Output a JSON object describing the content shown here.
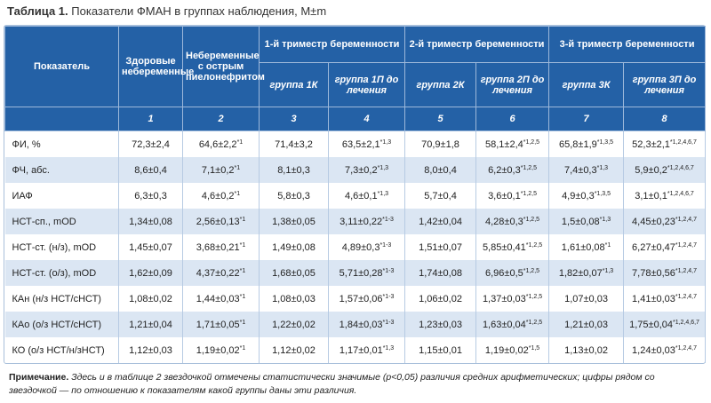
{
  "title": {
    "label": "Таблица 1.",
    "text": "Показатели ФМАН в группах наблюдения, M±m"
  },
  "table": {
    "header": {
      "indicator": "Показатель",
      "healthy": "Здоровые небеременные",
      "pyelo": "Небеременные с острым пиелонефритом",
      "trimesters": [
        "1-й триместр беременности",
        "2-й триместр беременности",
        "3-й триместр беременности"
      ],
      "groups": [
        "группа 1К",
        "группа 1П до лечения",
        "группа 2К",
        "группа 2П до лечения",
        "группа 3К",
        "группа 3П до лечения"
      ],
      "numbers": [
        "1",
        "2",
        "3",
        "4",
        "5",
        "6",
        "7",
        "8"
      ]
    },
    "rows": [
      {
        "label": "ФИ, %",
        "cells": [
          {
            "value": "72,3±2,4"
          },
          {
            "value": "64,6±2,2",
            "sup": "*1"
          },
          {
            "value": "71,4±3,2"
          },
          {
            "value": "63,5±2,1",
            "sup": "*1,3"
          },
          {
            "value": "70,9±1,8"
          },
          {
            "value": "58,1±2,4",
            "sup": "*1,2,5"
          },
          {
            "value": "65,8±1,9",
            "sup": "*1,3,5"
          },
          {
            "value": "52,3±2,1",
            "sup": "*1,2,4,6,7"
          }
        ]
      },
      {
        "label": "ФЧ, абс.",
        "cells": [
          {
            "value": "8,6±0,4"
          },
          {
            "value": "7,1±0,2",
            "sup": "*1"
          },
          {
            "value": "8,1±0,3"
          },
          {
            "value": "7,3±0,2",
            "sup": "*1,3"
          },
          {
            "value": "8,0±0,4"
          },
          {
            "value": "6,2±0,3",
            "sup": "*1,2,5"
          },
          {
            "value": "7,4±0,3",
            "sup": "*1,3"
          },
          {
            "value": "5,9±0,2",
            "sup": "*1,2,4,6,7"
          }
        ]
      },
      {
        "label": "ИАФ",
        "cells": [
          {
            "value": "6,3±0,3"
          },
          {
            "value": "4,6±0,2",
            "sup": "*1"
          },
          {
            "value": "5,8±0,3"
          },
          {
            "value": "4,6±0,1",
            "sup": "*1,3"
          },
          {
            "value": "5,7±0,4"
          },
          {
            "value": "3,6±0,1",
            "sup": "*1,2,5"
          },
          {
            "value": "4,9±0,3",
            "sup": "*1,3,5"
          },
          {
            "value": "3,1±0,1",
            "sup": "*1,2,4,6,7"
          }
        ]
      },
      {
        "label": "НСТ-сп., mOD",
        "cells": [
          {
            "value": "1,34±0,08"
          },
          {
            "value": "2,56±0,13",
            "sup": "*1"
          },
          {
            "value": "1,38±0,05"
          },
          {
            "value": "3,11±0,22",
            "sup": "*1-3"
          },
          {
            "value": "1,42±0,04"
          },
          {
            "value": "4,28±0,3",
            "sup": "*1,2,5"
          },
          {
            "value": "1,5±0,08",
            "sup": "*1,3"
          },
          {
            "value": "4,45±0,23",
            "sup": "*1,2,4,7"
          }
        ]
      },
      {
        "label": "НСТ-ст. (н/з), mOD",
        "cells": [
          {
            "value": "1,45±0,07"
          },
          {
            "value": "3,68±0,21",
            "sup": "*1"
          },
          {
            "value": "1,49±0,08"
          },
          {
            "value": "4,89±0,3",
            "sup": "*1-3"
          },
          {
            "value": "1,51±0,07"
          },
          {
            "value": "5,85±0,41",
            "sup": "*1,2,5"
          },
          {
            "value": "1,61±0,08",
            "sup": "*1"
          },
          {
            "value": "6,27±0,47",
            "sup": "*1,2,4,7"
          }
        ]
      },
      {
        "label": "НСТ-ст. (о/з), mOD",
        "cells": [
          {
            "value": "1,62±0,09"
          },
          {
            "value": "4,37±0,22",
            "sup": "*1"
          },
          {
            "value": "1,68±0,05"
          },
          {
            "value": "5,71±0,28",
            "sup": "*1-3"
          },
          {
            "value": "1,74±0,08"
          },
          {
            "value": "6,96±0,5",
            "sup": "*1,2,5"
          },
          {
            "value": "1,82±0,07",
            "sup": "*1,3"
          },
          {
            "value": "7,78±0,56",
            "sup": "*1,2,4,7"
          }
        ]
      },
      {
        "label": "КАн (н/з НСТ/сНСТ)",
        "cells": [
          {
            "value": "1,08±0,02"
          },
          {
            "value": "1,44±0,03",
            "sup": "*1"
          },
          {
            "value": "1,08±0,03"
          },
          {
            "value": "1,57±0,06",
            "sup": "*1-3"
          },
          {
            "value": "1,06±0,02"
          },
          {
            "value": "1,37±0,03",
            "sup": "*1,2,5"
          },
          {
            "value": "1,07±0,03"
          },
          {
            "value": "1,41±0,03",
            "sup": "*1,2,4,7"
          }
        ]
      },
      {
        "label": "КАо (о/з НСТ/сНСТ)",
        "cells": [
          {
            "value": "1,21±0,04"
          },
          {
            "value": "1,71±0,05",
            "sup": "*1"
          },
          {
            "value": "1,22±0,02"
          },
          {
            "value": "1,84±0,03",
            "sup": "*1-3"
          },
          {
            "value": "1,23±0,03"
          },
          {
            "value": "1,63±0,04",
            "sup": "*1,2,5"
          },
          {
            "value": "1,21±0,03"
          },
          {
            "value": "1,75±0,04",
            "sup": "*1,2,4,6,7"
          }
        ]
      },
      {
        "label": "КО (о/з НСТ/н/зНСТ)",
        "cells": [
          {
            "value": "1,12±0,03"
          },
          {
            "value": "1,19±0,02",
            "sup": "*1"
          },
          {
            "value": "1,12±0,02"
          },
          {
            "value": "1,17±0,01",
            "sup": "*1,3"
          },
          {
            "value": "1,15±0,01"
          },
          {
            "value": "1,19±0,02",
            "sup": "*1,5"
          },
          {
            "value": "1,13±0,02"
          },
          {
            "value": "1,24±0,03",
            "sup": "*1,2,4,7"
          }
        ]
      }
    ]
  },
  "note": {
    "label": "Примечание.",
    "text": "Здесь и в таблице 2 звездочкой отмечены статистически значимые (p<0,05) различия средних арифметических; цифры рядом со звездочкой — по отношению к показателям какой группы даны эти различия."
  }
}
